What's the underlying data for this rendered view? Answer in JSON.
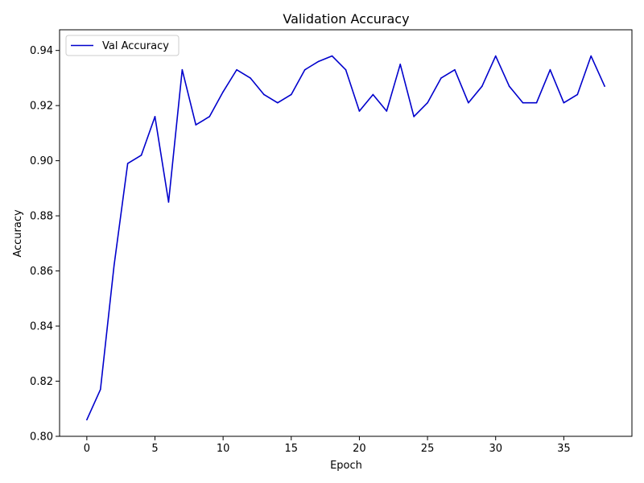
{
  "chart_data": {
    "type": "line",
    "title": "Validation Accuracy",
    "xlabel": "Epoch",
    "ylabel": "Accuracy",
    "xlim": [
      -2.0,
      40.0
    ],
    "ylim": [
      0.8,
      0.9475
    ],
    "xticks": [
      0,
      5,
      10,
      15,
      20,
      25,
      30,
      35
    ],
    "yticks": [
      0.8,
      0.82,
      0.84,
      0.86,
      0.88,
      0.9,
      0.92,
      0.94
    ],
    "ytick_labels": [
      "0.80",
      "0.82",
      "0.84",
      "0.86",
      "0.88",
      "0.90",
      "0.92",
      "0.94"
    ],
    "grid": false,
    "legend": {
      "position": "top-left"
    },
    "series": [
      {
        "name": "Val Accuracy",
        "color": "#0000cc",
        "x": [
          0,
          1,
          2,
          3,
          4,
          5,
          6,
          7,
          8,
          9,
          10,
          11,
          12,
          13,
          14,
          15,
          16,
          17,
          18,
          19,
          20,
          21,
          22,
          23,
          24,
          25,
          26,
          27,
          28,
          29,
          30,
          31,
          32,
          33,
          34,
          35,
          36,
          37,
          38
        ],
        "y": [
          0.806,
          0.817,
          0.862,
          0.899,
          0.902,
          0.916,
          0.885,
          0.933,
          0.913,
          0.916,
          0.925,
          0.933,
          0.93,
          0.924,
          0.921,
          0.924,
          0.933,
          0.936,
          0.938,
          0.933,
          0.918,
          0.924,
          0.918,
          0.935,
          0.916,
          0.921,
          0.93,
          0.933,
          0.921,
          0.927,
          0.938,
          0.927,
          0.921,
          0.921,
          0.933,
          0.921,
          0.924,
          0.938,
          0.927
        ]
      }
    ]
  }
}
